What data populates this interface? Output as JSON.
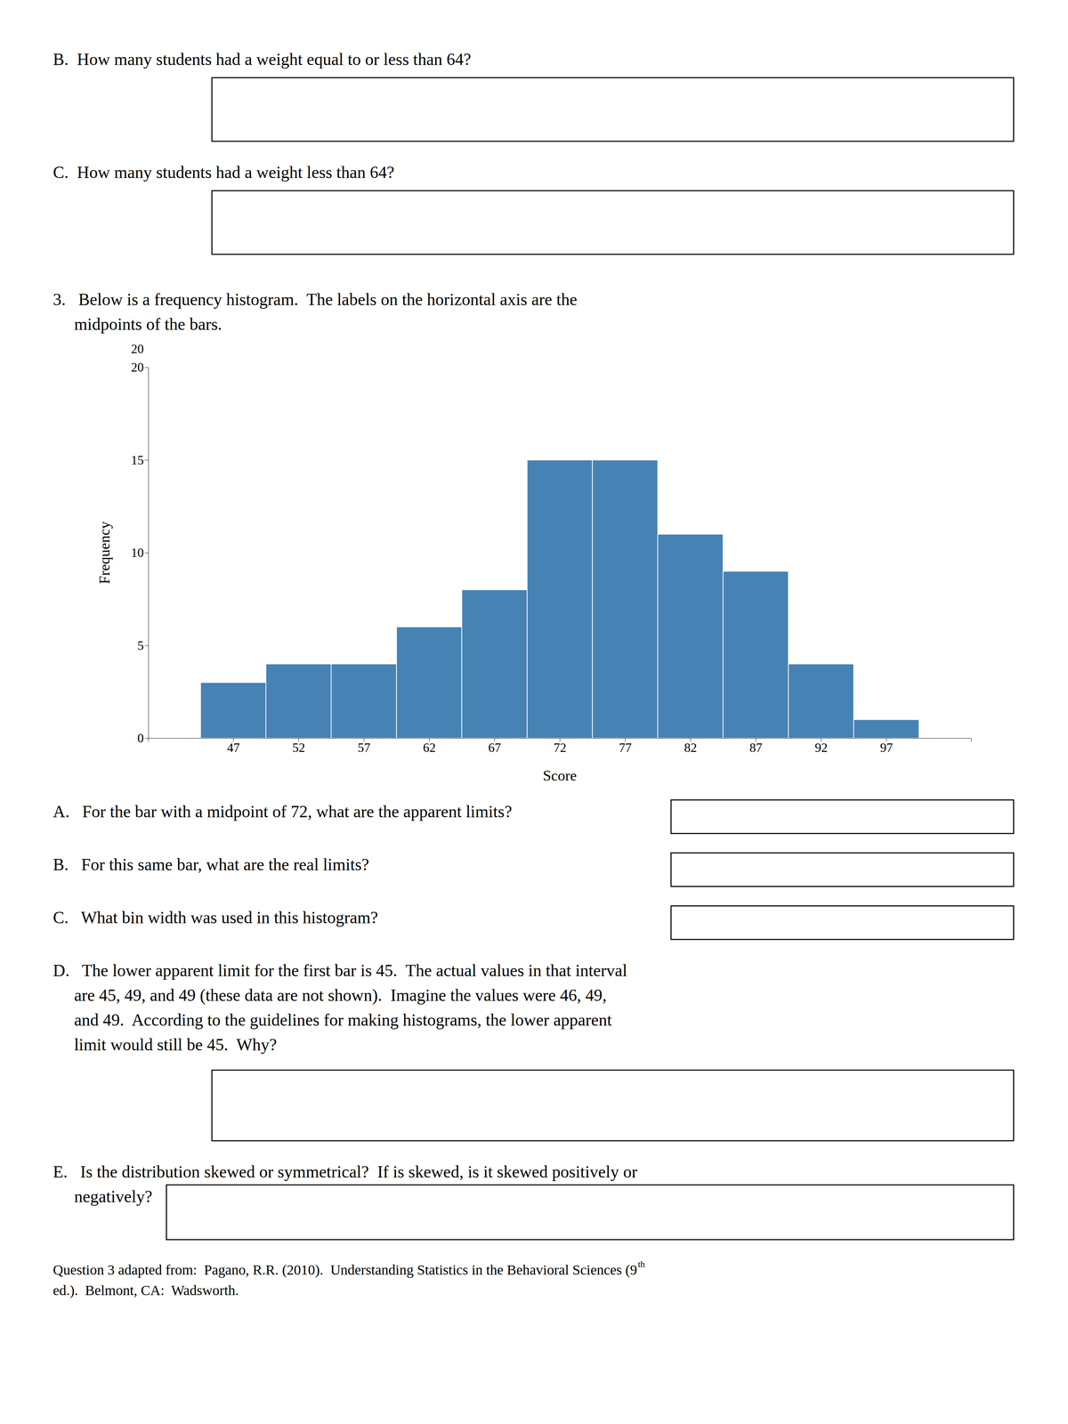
{
  "chart_data": {
    "type": "histogram",
    "xlabel": "Score",
    "ylabel": "Frequency",
    "bins": [
      44.5,
      49.5,
      54.5,
      59.5,
      64.5,
      69.5,
      74.5,
      79.5,
      84.5,
      89.5,
      94.5,
      99.5
    ],
    "values": [
      3,
      4,
      4,
      6,
      8,
      15,
      15,
      11,
      9,
      4,
      1
    ],
    "xlim": [
      40.5,
      103.5
    ],
    "xticks": [
      47,
      52,
      57,
      62,
      67,
      72,
      77,
      82,
      87,
      92,
      97
    ],
    "ylim": [
      0,
      20
    ],
    "yticks": [
      0,
      5,
      10,
      15,
      20
    ],
    "grid": false,
    "annotations": [
      "B.  How many students had a weight equal to or less than 64?",
      "C.  How many students had a weight less than 64?",
      "3.   Below is a frequency histogram.  The labels on the horizontal axis are the",
      "     midpoints of the bars.",
      "20",
      "A.   For the bar with a midpoint of 72, what are the apparent limits?",
      "B.   For this same bar, what are the real limits?",
      "C.   What bin width was used in this histogram?",
      "D.   The lower apparent limit for the first bar is 45.  The actual values in that interval",
      "     are 45, 49, and 49 (these data are not shown).  Imagine the values were 46, 49,",
      "     and 49.  According to the guidelines for making histograms, the lower apparent",
      "     limit would still be 45.  Why?",
      "E.   Is the distribution skewed or symmetrical?  If is skewed, is it skewed positively or",
      "     negatively?",
      "Question 3 adapted from:  Pagano, R.R. (2010).  Understanding Statistics in the Behavioral Sciences (9",
      "th",
      "ed.).  Belmont, CA:  Wadsworth."
    ]
  }
}
